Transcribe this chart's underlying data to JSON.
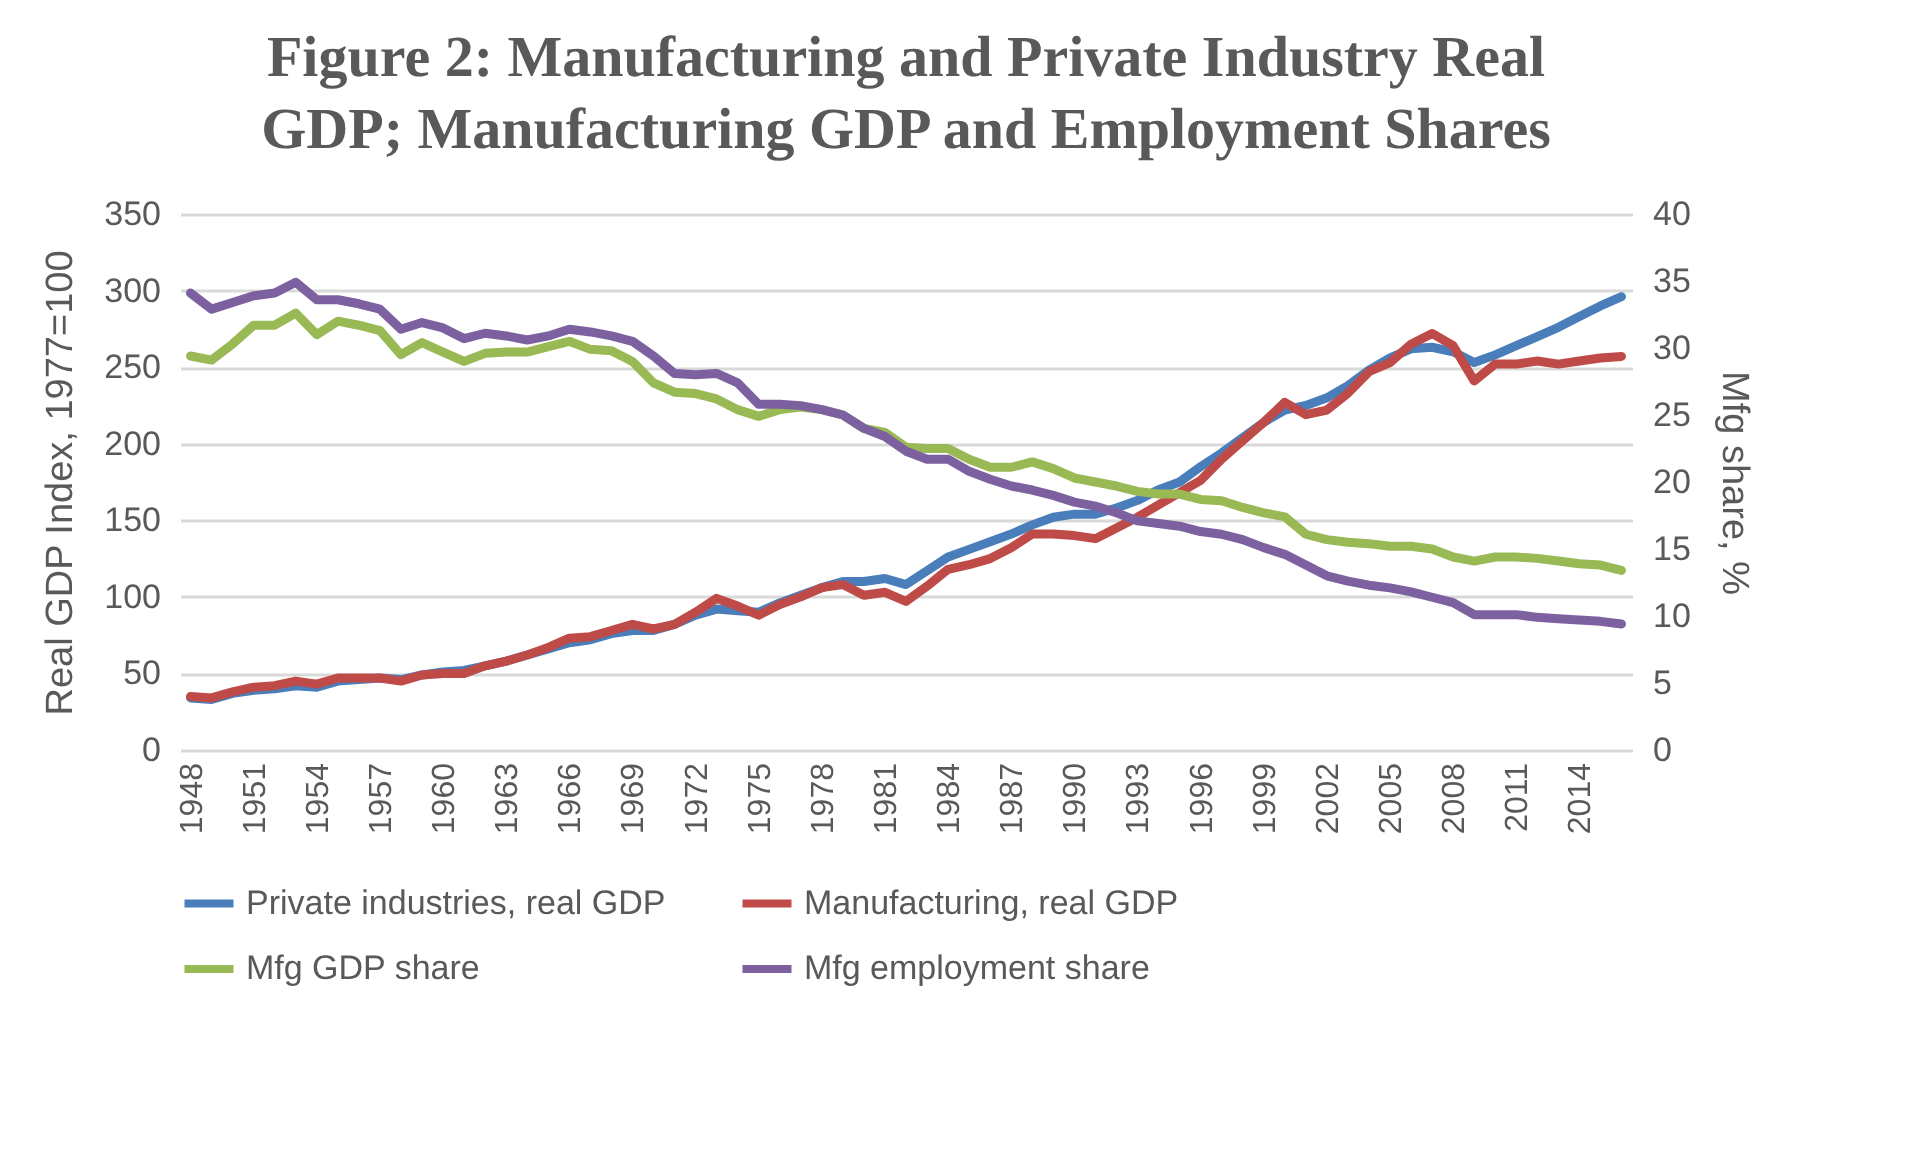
{
  "chart_data": {
    "type": "line",
    "title": "Figure 2: Manufacturing and Private Industry Real GDP; Manufacturing GDP and Employment Shares",
    "ylabel": "Real GDP Index, 1977=100",
    "y2label": "Mfg share, %",
    "categories": [
      "1948",
      null,
      null,
      "1951",
      null,
      null,
      "1954",
      null,
      null,
      "1957",
      null,
      null,
      "1960",
      null,
      null,
      "1963",
      null,
      null,
      "1966",
      null,
      null,
      "1969",
      null,
      null,
      "1972",
      null,
      null,
      "1975",
      null,
      null,
      "1978",
      null,
      null,
      "1981",
      null,
      null,
      "1984",
      null,
      null,
      "1987",
      null,
      null,
      "1990",
      null,
      null,
      "1993",
      null,
      null,
      "1996",
      null,
      null,
      "1999",
      null,
      null,
      "2002",
      null,
      null,
      "2005",
      null,
      null,
      "2008",
      null,
      null,
      "2011",
      null,
      null,
      "2014",
      null,
      null
    ],
    "ylim": [
      0,
      350
    ],
    "yticks": [
      0,
      50,
      100,
      150,
      200,
      250,
      300,
      350
    ],
    "y2lim": [
      0,
      40
    ],
    "y2ticks": [
      0,
      5,
      10,
      15,
      20,
      25,
      30,
      35,
      40
    ],
    "grid": "y",
    "legend": "bottom",
    "marker": "none",
    "line_style": "solid",
    "series": [
      {
        "name": "Private industries, real GDP",
        "color": "#4a7ebb",
        "values": [
          34,
          33,
          37,
          39,
          40,
          42,
          41,
          45,
          46,
          47,
          46,
          49,
          51,
          52,
          55,
          58,
          62,
          66,
          70,
          72,
          76,
          78,
          78,
          82,
          88,
          92,
          91,
          90,
          96,
          101,
          106,
          110,
          110,
          112,
          108,
          117,
          126,
          131,
          136,
          141,
          147,
          152,
          154,
          154,
          158,
          163,
          170,
          175,
          185,
          194,
          204,
          214,
          222,
          225,
          230,
          238,
          248,
          256,
          262,
          263,
          260,
          253,
          258,
          264,
          270,
          276,
          283,
          290,
          296
        ]
      },
      {
        "name": "Manufacturing, real GDP",
        "color": "#be4b48",
        "values": [
          35,
          34,
          38,
          41,
          42,
          45,
          43,
          47,
          47,
          47,
          45,
          49,
          50,
          50,
          55,
          58,
          62,
          67,
          73,
          74,
          78,
          82,
          79,
          82,
          90,
          99,
          94,
          88,
          95,
          100,
          106,
          108,
          101,
          103,
          97,
          107,
          118,
          121,
          125,
          132,
          141,
          141,
          140,
          138,
          145,
          152,
          160,
          168,
          176,
          190,
          202,
          214,
          227,
          219,
          222,
          233,
          247,
          253,
          265,
          272,
          264,
          241,
          252,
          252,
          254,
          252,
          254,
          256,
          257
        ]
      },
      {
        "name": "Mfg GDP share",
        "color": "#98b954",
        "axis": "y2",
        "values": [
          29.4,
          29.1,
          30.3,
          31.7,
          31.7,
          32.6,
          31.0,
          32.0,
          31.7,
          31.3,
          29.5,
          30.4,
          29.7,
          29.0,
          29.6,
          29.7,
          29.7,
          30.1,
          30.5,
          29.9,
          29.8,
          29.0,
          27.4,
          26.7,
          26.6,
          26.2,
          25.4,
          24.9,
          25.4,
          25.6,
          25.4,
          25.0,
          24.0,
          23.7,
          22.6,
          22.5,
          22.5,
          21.7,
          21.1,
          21.1,
          21.5,
          21.0,
          20.3,
          20.0,
          19.7,
          19.3,
          19.1,
          19.1,
          18.7,
          18.6,
          18.1,
          17.7,
          17.4,
          16.1,
          15.7,
          15.5,
          15.4,
          15.2,
          15.2,
          15.0,
          14.4,
          14.1,
          14.4,
          14.4,
          14.3,
          14.1,
          13.9,
          13.8,
          13.4
        ]
      },
      {
        "name": "Mfg employment share",
        "color": "#7d60a0",
        "axis": "y2",
        "values": [
          34.1,
          32.9,
          33.4,
          33.9,
          34.1,
          34.9,
          33.6,
          33.6,
          33.3,
          32.9,
          31.4,
          31.9,
          31.5,
          30.7,
          31.1,
          30.9,
          30.6,
          30.9,
          31.4,
          31.2,
          30.9,
          30.5,
          29.4,
          28.1,
          28.0,
          28.1,
          27.4,
          25.8,
          25.8,
          25.7,
          25.4,
          25.0,
          24.0,
          23.4,
          22.3,
          21.7,
          21.7,
          20.8,
          20.2,
          19.7,
          19.4,
          19.0,
          18.5,
          18.2,
          17.7,
          17.1,
          16.9,
          16.7,
          16.3,
          16.1,
          15.7,
          15.1,
          14.6,
          13.8,
          13.0,
          12.6,
          12.3,
          12.1,
          11.8,
          11.4,
          11.0,
          10.1,
          10.1,
          10.1,
          9.9,
          9.8,
          9.7,
          9.6,
          9.4
        ]
      }
    ]
  }
}
